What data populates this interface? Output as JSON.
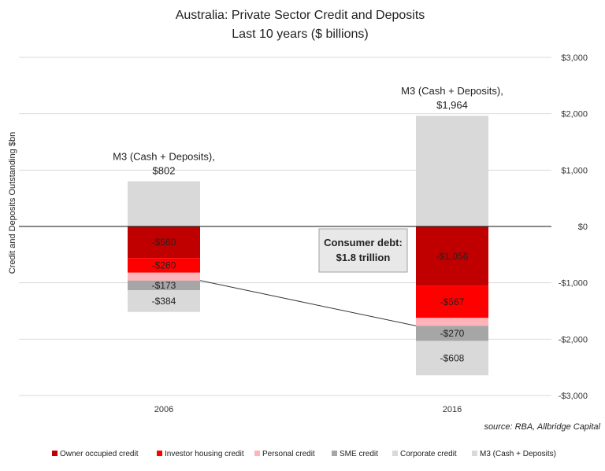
{
  "chart_data": {
    "type": "bar",
    "stacked": true,
    "title": "Australia: Private Sector Credit and Deposits",
    "subtitle": "Last 10 years ($ billions)",
    "ylabel": "Credit and Deposits Outstanding $bn",
    "xlabel": "",
    "categories": [
      "2006",
      "2016"
    ],
    "ylim": [
      -3000,
      3000
    ],
    "yticks": [
      3000,
      2000,
      1000,
      0,
      -1000,
      -2000,
      -3000
    ],
    "ytick_labels": [
      "$3,000",
      "$2,000",
      "$1,000",
      "$0",
      "-$1,000",
      "-$2,000",
      "-$3,000"
    ],
    "y_axis_side": "right",
    "grid": true,
    "series": [
      {
        "name": "Owner occupied credit",
        "values": [
          -560,
          -1056
        ],
        "labels": [
          "-$560",
          "-$1,056"
        ],
        "color": "#c00000"
      },
      {
        "name": "Investor housing credit",
        "values": [
          -260,
          -567
        ],
        "labels": [
          "-$260",
          "-$567"
        ],
        "color": "#ff0000"
      },
      {
        "name": "Personal credit",
        "values": [
          -140,
          -140
        ],
        "labels": [
          "",
          ""
        ],
        "color": "#ffb3ba"
      },
      {
        "name": "SME credit",
        "values": [
          -173,
          -270
        ],
        "labels": [
          "-$173",
          "-$270"
        ],
        "color": "#a6a6a6"
      },
      {
        "name": "Corporate credit",
        "values": [
          -384,
          -608
        ],
        "labels": [
          "-$384",
          "-$608"
        ],
        "color": "#d9d9d9"
      },
      {
        "name": "M3 (Cash + Deposits)",
        "values": [
          802,
          1964
        ],
        "labels": [
          "",
          ""
        ],
        "color": "#d9d9d9"
      }
    ],
    "m3_annotations": [
      {
        "line1": "M3 (Cash + Deposits),",
        "line2": "$802"
      },
      {
        "line1": "M3 (Cash + Deposits),",
        "line2": "$1,964"
      }
    ],
    "callout": {
      "line1": "Consumer debt:",
      "line2": "$1.8 trillion"
    },
    "source": "source: RBA, Allbridge Capital",
    "legend_position": "bottom"
  }
}
